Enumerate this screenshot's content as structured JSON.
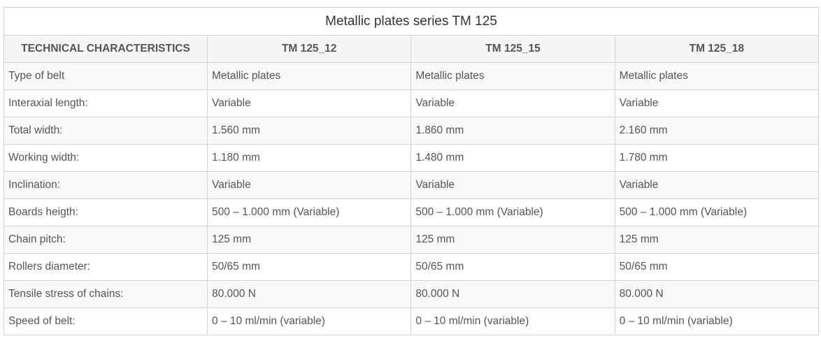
{
  "table": {
    "title": "Metallic plates series TM 125",
    "header": [
      "TECHNICAL CHARACTERISTICS",
      "TM 125_12",
      "TM 125_15",
      "TM 125_18"
    ],
    "rows": [
      [
        "Type of belt",
        "Metallic plates",
        "Metallic plates",
        "Metallic plates"
      ],
      [
        "Interaxial length:",
        "Variable",
        "Variable",
        "Variable"
      ],
      [
        "Total width:",
        "1.560 mm",
        "1.860 mm",
        "2.160 mm"
      ],
      [
        "Working width:",
        "1.180 mm",
        "1.480 mm",
        "1.780 mm"
      ],
      [
        "Inclination:",
        "Variable",
        "Variable",
        "Variable"
      ],
      [
        "Boards heigth:",
        "500 – 1.000 mm (Variable)",
        "500 – 1.000 mm (Variable)",
        "500 – 1.000 mm (Variable)"
      ],
      [
        "Chain pitch:",
        "125 mm",
        "125 mm",
        "125 mm"
      ],
      [
        "Rollers diameter:",
        "50/65 mm",
        "50/65 mm",
        "50/65 mm"
      ],
      [
        "Tensile stress of chains:",
        "80.000 N",
        "80.000 N",
        "80.000 N"
      ],
      [
        "Speed of belt:",
        "0 – 10 ml/min (variable)",
        "0 – 10 ml/min (variable)",
        "0 – 10 ml/min (variable)"
      ]
    ]
  }
}
